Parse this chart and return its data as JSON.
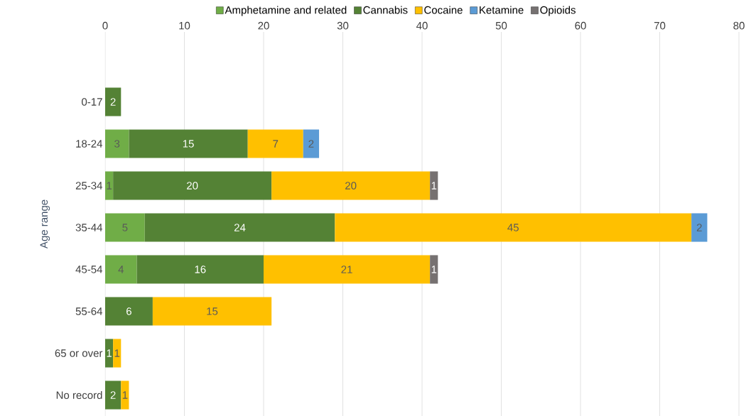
{
  "chart_data": {
    "type": "bar",
    "orientation": "horizontal",
    "stacked": true,
    "ylabel": "Age range",
    "categories": [
      "0-17",
      "18-24",
      "25-34",
      "35-44",
      "45-54",
      "55-64",
      "65 or over",
      "No record"
    ],
    "series": [
      {
        "name": "Amphetamine and related",
        "color": "#70ad47",
        "values": [
          null,
          3,
          1,
          5,
          4,
          null,
          null,
          null
        ]
      },
      {
        "name": "Cannabis",
        "color": "#548235",
        "values": [
          2,
          15,
          20,
          24,
          16,
          6,
          1,
          2
        ]
      },
      {
        "name": "Cocaine",
        "color": "#ffc000",
        "values": [
          null,
          7,
          20,
          45,
          21,
          15,
          1,
          1
        ]
      },
      {
        "name": "Ketamine",
        "color": "#5b9bd5",
        "values": [
          null,
          2,
          null,
          2,
          null,
          null,
          null,
          null
        ]
      },
      {
        "name": "Opioids",
        "color": "#767171",
        "values": [
          null,
          null,
          1,
          null,
          1,
          null,
          null,
          null
        ]
      }
    ],
    "xlim": [
      0,
      80
    ],
    "xticks": [
      0,
      10,
      20,
      30,
      40,
      50,
      60,
      70,
      80
    ],
    "grid": "x",
    "legend": "top",
    "data_labels": true
  }
}
